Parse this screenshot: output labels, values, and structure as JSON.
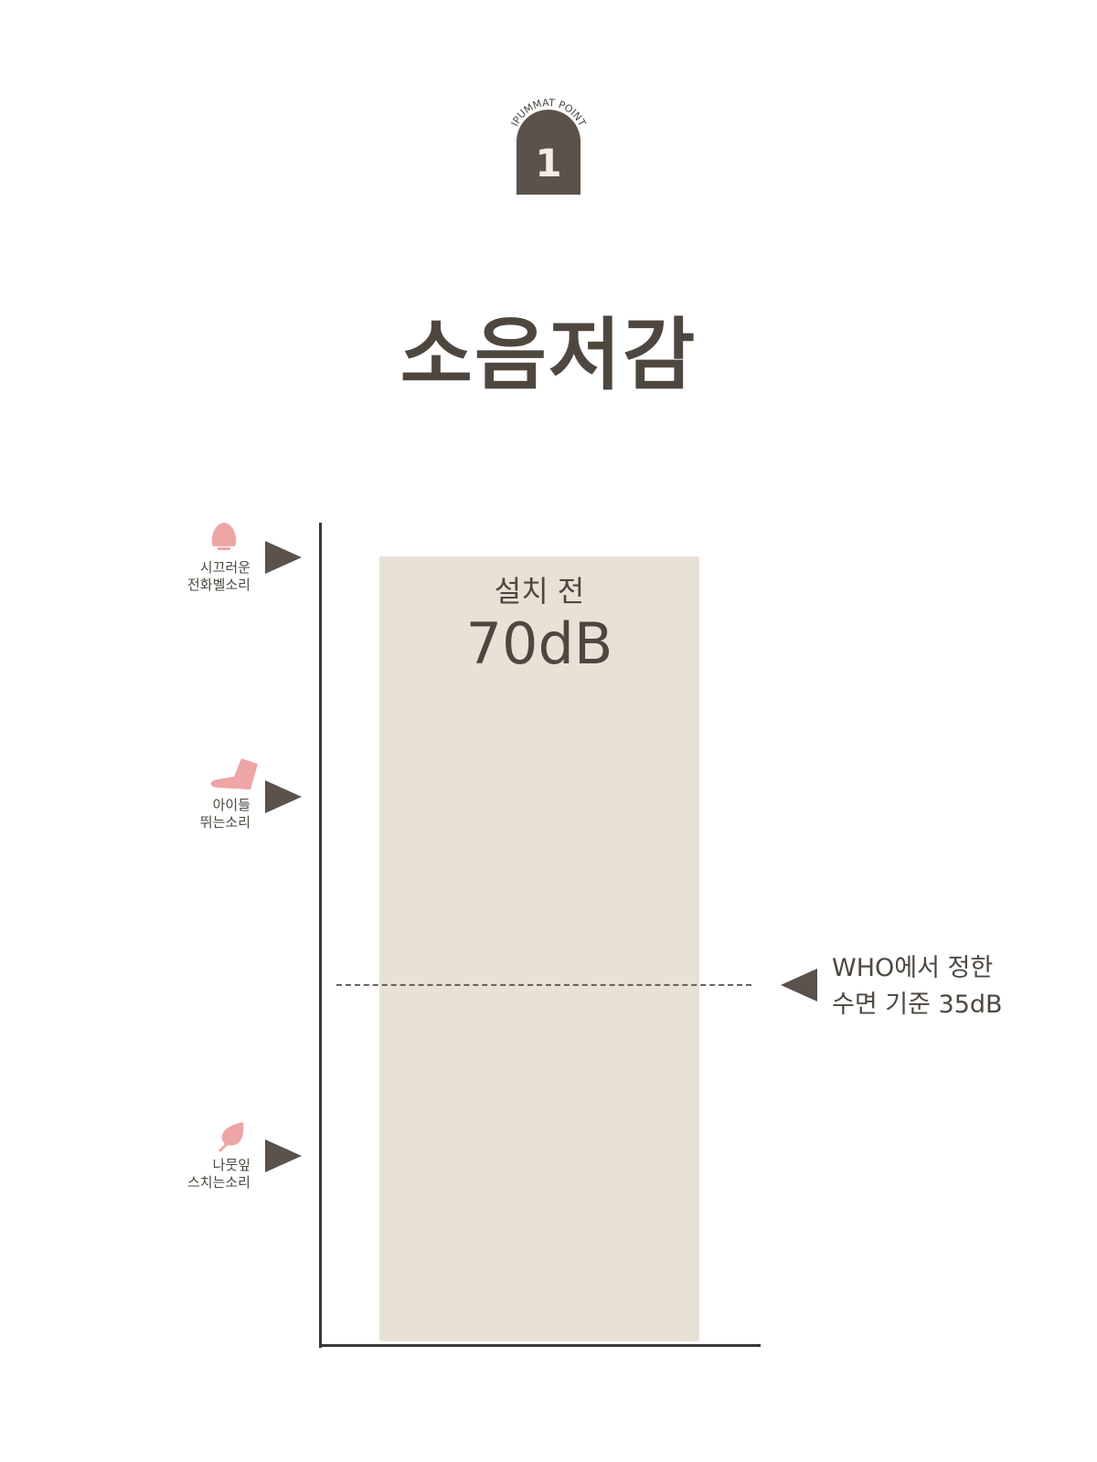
{
  "badge": {
    "caption": "IPUMMAT POINT",
    "number": "1"
  },
  "title": "소음저감",
  "chart_data": {
    "type": "bar",
    "categories": [
      "설치 전"
    ],
    "values": [
      70
    ],
    "value_labels": [
      "70dB"
    ],
    "unit": "dB",
    "reference_lines": [
      {
        "value": 35,
        "style": "dashed",
        "label": [
          "WHO에서 정한",
          "수면 기준 35dB"
        ]
      }
    ],
    "level_markers": [
      {
        "icon": "bell-icon",
        "label": [
          "시끄러운",
          "전화벨소리"
        ]
      },
      {
        "icon": "foot-icon",
        "label": [
          "아이들",
          "뛰는소리"
        ]
      },
      {
        "icon": "leaf-icon",
        "label": [
          "나뭇잎",
          "스치는소리"
        ]
      }
    ],
    "colors": {
      "bar": "#e8e2d6",
      "icons": "#eea5a6",
      "dark": "#5a524b"
    }
  }
}
